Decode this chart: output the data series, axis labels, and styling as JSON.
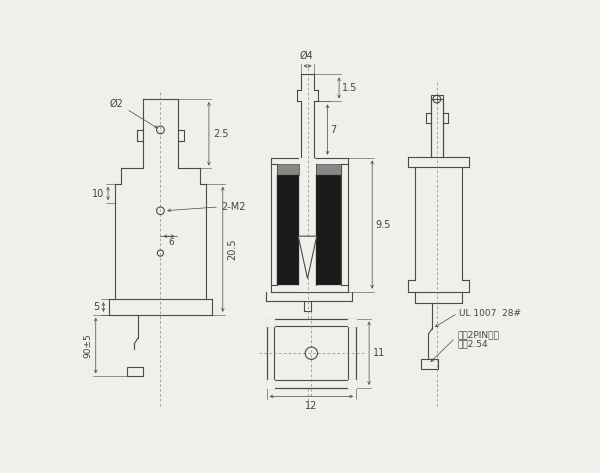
{
  "bg_color": "#f0f0eb",
  "line_color": "#4a4a4a",
  "dark_fill": "#1a1a1a",
  "hatch_fill": "#888888",
  "dim_color": "#444444",
  "annotations": {
    "phi2": "Ø2",
    "phi4": "Ø4",
    "dim_2_5": "2.5",
    "dim_20_5": "20.5",
    "dim_10": "10",
    "dim_6": "6",
    "dim_5": "5",
    "dim_90_5": "90±5",
    "dim_2m2": "2-M2",
    "dim_1_5": "1.5",
    "dim_7": "7",
    "dim_9_5": "9.5",
    "dim_11": "11",
    "dim_12": "12",
    "label_ul": "UL 1007  28#",
    "label_white": "白色2PIN端子",
    "label_pitch": "间距2.54"
  }
}
